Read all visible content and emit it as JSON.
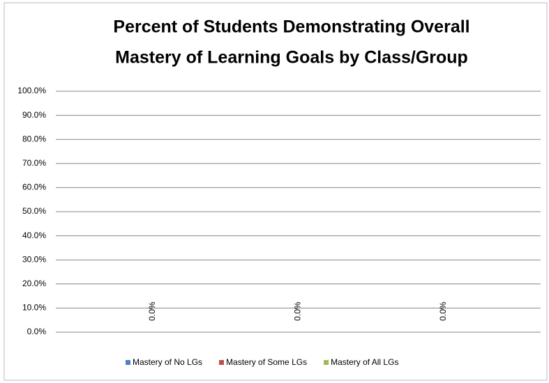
{
  "chart_data": {
    "type": "bar",
    "title": [
      "Percent of Students Demonstrating Overall",
      "Mastery of Learning Goals by Class/Group"
    ],
    "categories": [
      null
    ],
    "series": [
      {
        "name": "Mastery of No LGs",
        "color": "#4f81bd",
        "values": [
          0
        ],
        "value_labels": [
          "0.0%"
        ]
      },
      {
        "name": "Mastery of Some LGs",
        "color": "#c0504d",
        "values": [
          0
        ],
        "value_labels": [
          "0.0%"
        ]
      },
      {
        "name": "Mastery of All LGs",
        "color": "#9bbb59",
        "values": [
          0
        ],
        "value_labels": [
          "0.0%"
        ]
      }
    ],
    "ylim": [
      0,
      100
    ],
    "yticks": [
      {
        "value": 0,
        "label": "0.0%"
      },
      {
        "value": 10,
        "label": "10.0%"
      },
      {
        "value": 20,
        "label": "20.0%"
      },
      {
        "value": 30,
        "label": "30.0%"
      },
      {
        "value": 40,
        "label": "40.0%"
      },
      {
        "value": 50,
        "label": "50.0%"
      },
      {
        "value": 60,
        "label": "60.0%"
      },
      {
        "value": 70,
        "label": "70.0%"
      },
      {
        "value": 80,
        "label": "80.0%"
      },
      {
        "value": 90,
        "label": "90.0%"
      },
      {
        "value": 100,
        "label": "100.0%"
      }
    ],
    "grid": true,
    "legend": "bottom"
  }
}
